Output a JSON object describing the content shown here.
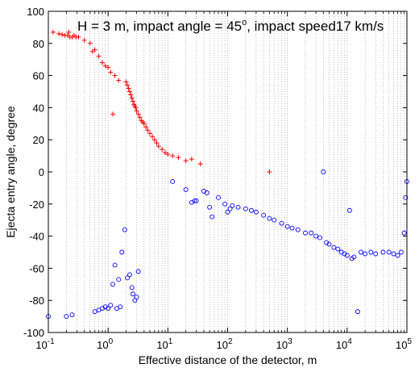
{
  "chart_data": {
    "type": "scatter",
    "title_parts": [
      "H = 3 m, impact angle = 45",
      "o",
      ", impact speed17 km/s"
    ],
    "xlabel": "Effective distance of the detector, m",
    "ylabel": "Ejecta entry angle, degree",
    "x_scale": "log",
    "xlim": [
      0.1,
      100000
    ],
    "ylim": [
      -100,
      100
    ],
    "grid": "x-major-and-minor-dotted",
    "x_tick_labels": [
      {
        "base": "10",
        "exp": "-1"
      },
      {
        "base": "10",
        "exp": "0"
      },
      {
        "base": "10",
        "exp": "1"
      },
      {
        "base": "10",
        "exp": "2"
      },
      {
        "base": "10",
        "exp": "3"
      },
      {
        "base": "10",
        "exp": "4"
      },
      {
        "base": "10",
        "exp": "5"
      }
    ],
    "y_ticks": [
      -100,
      -80,
      -60,
      -40,
      -20,
      0,
      20,
      40,
      60,
      80,
      100
    ],
    "series": [
      {
        "marker": "plus",
        "color": "#ff0000",
        "points": [
          [
            0.12,
            87
          ],
          [
            0.15,
            86
          ],
          [
            0.17,
            85.5
          ],
          [
            0.19,
            85
          ],
          [
            0.21,
            85
          ],
          [
            0.23,
            84
          ],
          [
            0.25,
            84
          ],
          [
            0.27,
            85
          ],
          [
            0.29,
            84
          ],
          [
            0.32,
            84
          ],
          [
            0.22,
            87
          ],
          [
            0.4,
            82
          ],
          [
            0.5,
            80
          ],
          [
            0.55,
            75
          ],
          [
            0.6,
            76
          ],
          [
            0.7,
            72
          ],
          [
            0.8,
            68
          ],
          [
            0.9,
            66
          ],
          [
            1.0,
            65
          ],
          [
            1.1,
            62
          ],
          [
            1.3,
            60
          ],
          [
            1.5,
            57
          ],
          [
            1.2,
            36
          ],
          [
            2.0,
            56
          ],
          [
            2.1,
            54
          ],
          [
            2.2,
            52
          ],
          [
            2.3,
            50
          ],
          [
            2.4,
            48
          ],
          [
            2.5,
            46
          ],
          [
            2.6,
            44
          ],
          [
            2.7,
            42
          ],
          [
            2.8,
            41
          ],
          [
            2.9,
            40
          ],
          [
            3.0,
            38
          ],
          [
            3.2,
            36
          ],
          [
            3.4,
            34
          ],
          [
            3.6,
            32
          ],
          [
            3.8,
            31
          ],
          [
            4.0,
            30
          ],
          [
            4.3,
            28
          ],
          [
            4.6,
            26
          ],
          [
            5.0,
            24
          ],
          [
            5.5,
            22
          ],
          [
            6.0,
            20
          ],
          [
            6.5,
            18
          ],
          [
            7.0,
            16
          ],
          [
            8.0,
            14
          ],
          [
            9.0,
            12
          ],
          [
            10,
            11
          ],
          [
            12,
            10
          ],
          [
            15,
            9
          ],
          [
            20,
            7
          ],
          [
            25,
            8
          ],
          [
            35,
            5
          ],
          [
            500,
            0
          ]
        ]
      },
      {
        "marker": "circle",
        "color": "#0000ff",
        "points": [
          [
            0.1,
            -90
          ],
          [
            0.2,
            -90
          ],
          [
            0.25,
            -89
          ],
          [
            0.6,
            -87
          ],
          [
            0.7,
            -86
          ],
          [
            0.8,
            -85
          ],
          [
            0.9,
            -84
          ],
          [
            1.0,
            -85
          ],
          [
            1.1,
            -83
          ],
          [
            1.2,
            -70
          ],
          [
            1.3,
            -58
          ],
          [
            1.4,
            -85
          ],
          [
            1.5,
            -67
          ],
          [
            1.6,
            -84
          ],
          [
            1.7,
            -50
          ],
          [
            1.9,
            -36
          ],
          [
            2.1,
            -66
          ],
          [
            2.3,
            -64
          ],
          [
            2.5,
            -72
          ],
          [
            2.6,
            -76
          ],
          [
            2.8,
            -80
          ],
          [
            3.0,
            -78
          ],
          [
            3.2,
            -62
          ],
          [
            12,
            -6
          ],
          [
            20,
            -11
          ],
          [
            25,
            -19
          ],
          [
            28,
            -18
          ],
          [
            30,
            -18
          ],
          [
            40,
            -12
          ],
          [
            45,
            -13
          ],
          [
            50,
            -22
          ],
          [
            55,
            -28
          ],
          [
            70,
            -16
          ],
          [
            90,
            -20
          ],
          [
            100,
            -25
          ],
          [
            110,
            -23
          ],
          [
            120,
            -21
          ],
          [
            150,
            -22
          ],
          [
            200,
            -23
          ],
          [
            250,
            -24
          ],
          [
            300,
            -25
          ],
          [
            400,
            -27
          ],
          [
            500,
            -29
          ],
          [
            600,
            -30
          ],
          [
            800,
            -32
          ],
          [
            1000,
            -34
          ],
          [
            1200,
            -35
          ],
          [
            1500,
            -36
          ],
          [
            2000,
            -38
          ],
          [
            2500,
            -38
          ],
          [
            3000,
            -40
          ],
          [
            3500,
            -41
          ],
          [
            4000,
            0
          ],
          [
            4500,
            -44
          ],
          [
            5000,
            -45
          ],
          [
            6000,
            -47
          ],
          [
            7000,
            -48
          ],
          [
            8000,
            -50
          ],
          [
            9000,
            -51
          ],
          [
            10000,
            -52
          ],
          [
            11000,
            -24
          ],
          [
            12000,
            -54
          ],
          [
            13000,
            -53
          ],
          [
            15000,
            -87
          ],
          [
            17000,
            -50
          ],
          [
            20000,
            -51
          ],
          [
            25000,
            -50
          ],
          [
            30000,
            -51
          ],
          [
            40000,
            -50
          ],
          [
            50000,
            -50
          ],
          [
            60000,
            -51
          ],
          [
            70000,
            -52
          ],
          [
            80000,
            -50
          ],
          [
            90000,
            -38
          ],
          [
            95000,
            -16
          ],
          [
            100000,
            -6
          ]
        ]
      }
    ]
  }
}
